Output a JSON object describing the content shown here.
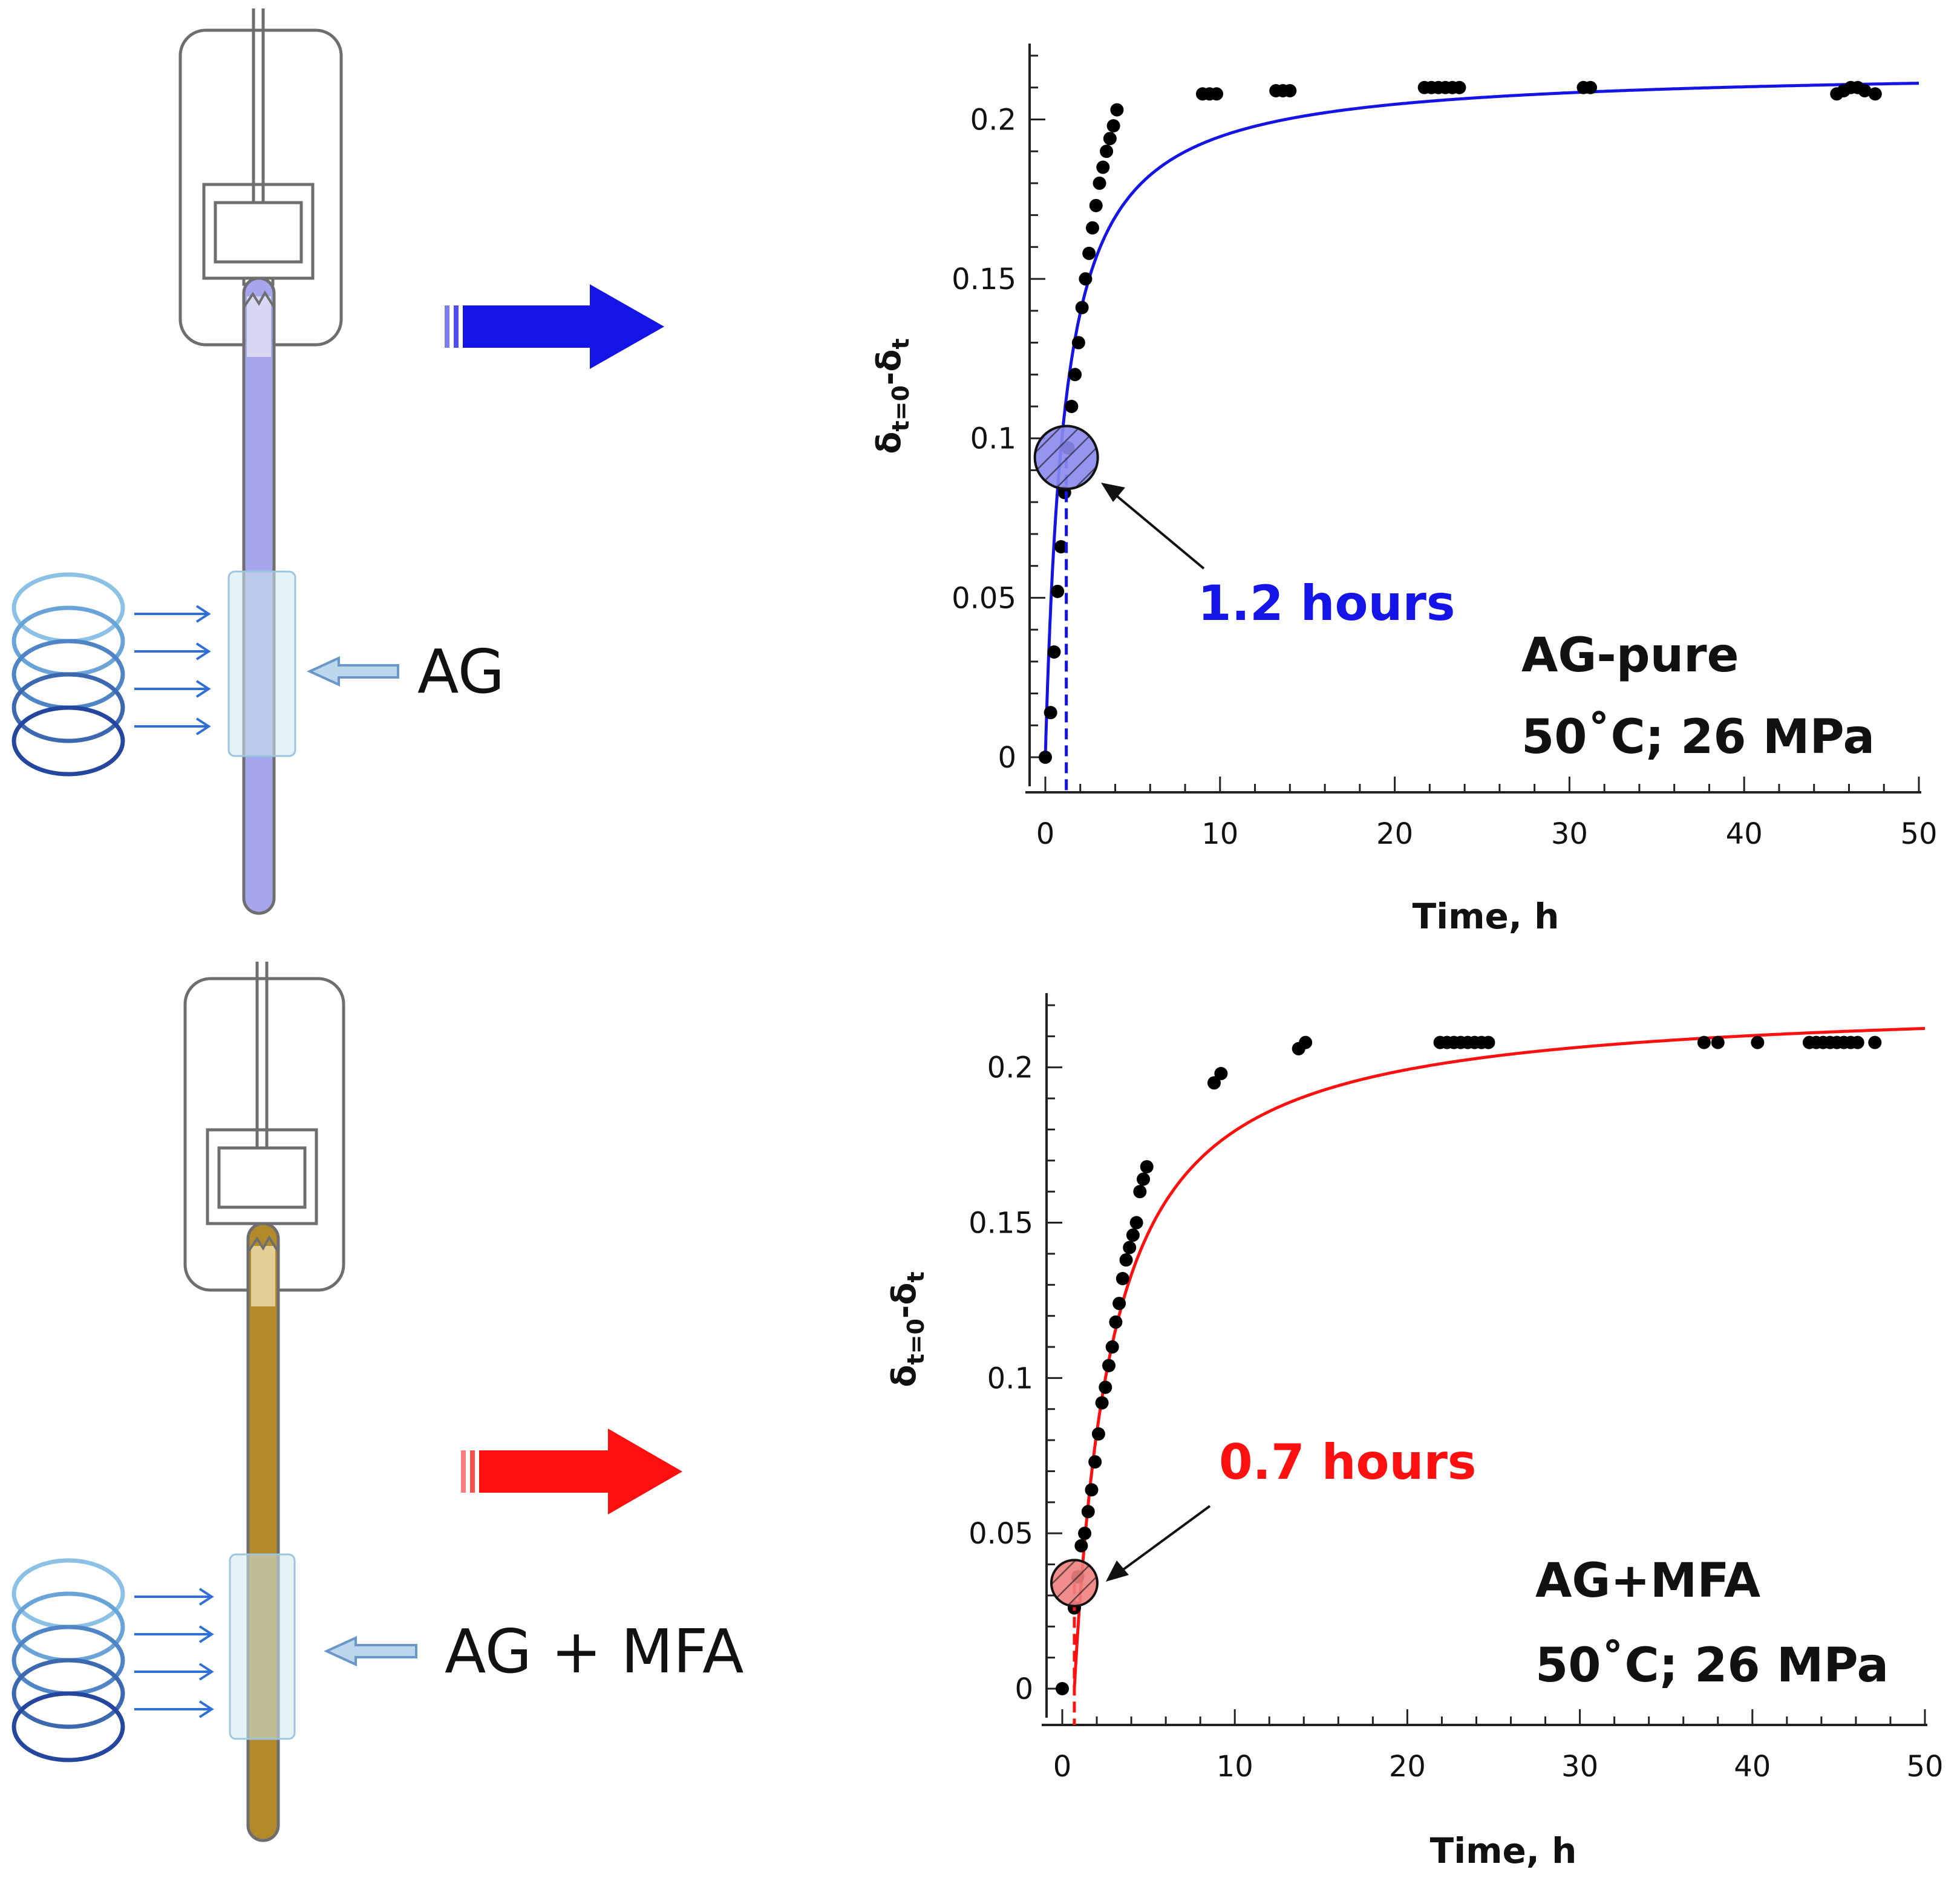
{
  "colors": {
    "top_accent": "#1414e6",
    "bottom_accent": "#ff1010",
    "top_fill": "#a6a6ee",
    "bottom_fill": "#b38a2b",
    "coil_dark": "#24469e",
    "coil_light": "#8cc1e6",
    "points": "#000000"
  },
  "icons": [
    "high-pressure-cell-icon",
    "coil-icon",
    "arrow-right-icon",
    "arrow-left-icon"
  ],
  "panels": [
    {
      "tube_label": "AG",
      "sample_label": "AG-pure",
      "conditions": "50˚C; 26 MPa",
      "time_annotation": "1.2 hours"
    },
    {
      "tube_label": "AG + MFA",
      "sample_label": "AG+MFA",
      "conditions": "50˚C; 26 MPa",
      "time_annotation": "0.7 hours"
    }
  ],
  "chart_data": [
    {
      "type": "scatter",
      "xlabel": "Time, h",
      "ylabel": "δt=0-δt",
      "ylabel_main": "δ",
      "ylabel_sub1": "t=0",
      "ylabel_dash": "-δ",
      "ylabel_sub2": "t",
      "xlim": [
        0,
        50
      ],
      "ylim": [
        0,
        0.22
      ],
      "x_ticks": [
        0,
        10,
        20,
        30,
        40,
        50
      ],
      "x_tick_labels": [
        "0",
        "10",
        "20",
        "30",
        "40",
        "50"
      ],
      "y_ticks": [
        0,
        0.05,
        0.1,
        0.15,
        0.2
      ],
      "y_tick_labels": [
        "0",
        "0.05",
        "0.1",
        "0.15",
        "0.2"
      ],
      "series": [
        {
          "kind": "points",
          "x": [
            0.0,
            0.3,
            0.5,
            0.7,
            0.9,
            1.1,
            1.3,
            1.5,
            1.7,
            1.9,
            2.1,
            2.3,
            2.5,
            2.7,
            2.9,
            3.1,
            3.3,
            3.5,
            3.7,
            3.9,
            4.1,
            9.0,
            9.4,
            9.8,
            13.2,
            13.6,
            14.0,
            21.7,
            22.1,
            22.5,
            22.9,
            23.3,
            23.7,
            30.8,
            31.2,
            45.3,
            45.7,
            46.1,
            46.5,
            46.9,
            47.5
          ],
          "y": [
            0.0,
            0.014,
            0.033,
            0.052,
            0.066,
            0.083,
            0.097,
            0.11,
            0.12,
            0.13,
            0.141,
            0.15,
            0.158,
            0.166,
            0.173,
            0.18,
            0.185,
            0.19,
            0.194,
            0.198,
            0.203,
            0.208,
            0.208,
            0.208,
            0.209,
            0.209,
            0.209,
            0.21,
            0.21,
            0.21,
            0.21,
            0.21,
            0.21,
            0.21,
            0.21,
            0.208,
            0.209,
            0.21,
            0.21,
            0.209,
            0.208
          ]
        },
        {
          "kind": "fit",
          "model": "y = a*t/(b+t)",
          "a": 0.216,
          "b": 1.1
        },
        {
          "kind": "marker",
          "x": 1.2,
          "y": 0.094
        }
      ]
    },
    {
      "type": "scatter",
      "xlabel": "Time, h",
      "ylabel": "δt=0-δt",
      "ylabel_main": "δ",
      "ylabel_sub1": "t=0",
      "ylabel_dash": "-δ",
      "ylabel_sub2": "t",
      "xlim": [
        0,
        50
      ],
      "ylim": [
        0,
        0.22
      ],
      "x_ticks": [
        0,
        10,
        20,
        30,
        40,
        50
      ],
      "x_tick_labels": [
        "0",
        "10",
        "20",
        "30",
        "40",
        "50"
      ],
      "y_ticks": [
        0,
        0.05,
        0.1,
        0.15,
        0.2
      ],
      "y_tick_labels": [
        "0",
        "0.05",
        "0.1",
        "0.15",
        "0.2"
      ],
      "series": [
        {
          "kind": "points",
          "x": [
            0.0,
            0.7,
            0.9,
            1.1,
            1.3,
            1.5,
            1.7,
            1.9,
            2.1,
            2.3,
            2.5,
            2.7,
            2.9,
            3.1,
            3.3,
            3.5,
            3.7,
            3.9,
            4.1,
            4.3,
            4.5,
            4.7,
            4.9,
            8.8,
            9.2,
            13.7,
            14.1,
            21.9,
            22.3,
            22.7,
            23.1,
            23.5,
            23.9,
            24.3,
            24.7,
            37.2,
            38.0,
            40.3,
            43.3,
            43.7,
            44.1,
            44.5,
            44.9,
            45.3,
            45.7,
            46.1,
            47.1
          ],
          "y": [
            0.0,
            0.026,
            0.036,
            0.046,
            0.05,
            0.057,
            0.064,
            0.073,
            0.082,
            0.092,
            0.097,
            0.104,
            0.11,
            0.118,
            0.124,
            0.132,
            0.138,
            0.142,
            0.146,
            0.15,
            0.16,
            0.164,
            0.168,
            0.195,
            0.198,
            0.206,
            0.208,
            0.208,
            0.208,
            0.208,
            0.208,
            0.208,
            0.208,
            0.208,
            0.208,
            0.208,
            0.208,
            0.208,
            0.208,
            0.208,
            0.208,
            0.208,
            0.208,
            0.208,
            0.208,
            0.208,
            0.208
          ]
        },
        {
          "kind": "fit",
          "model": "y = a*(t-t0)/(b+(t-t0))",
          "a": 0.222,
          "b": 2.2,
          "t0": 0.7
        },
        {
          "kind": "marker",
          "x": 0.7,
          "y": 0.034
        }
      ]
    }
  ]
}
